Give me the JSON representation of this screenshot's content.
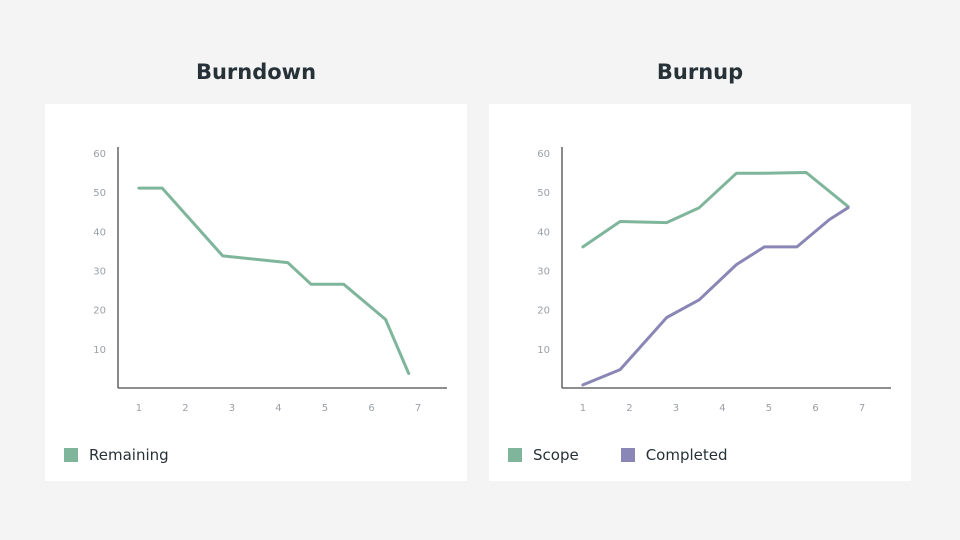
{
  "charts": [
    {
      "type": "line",
      "title": "Burndown",
      "x": [
        1,
        2,
        3,
        4,
        5,
        6,
        7
      ],
      "y_ticks": [
        10,
        20,
        30,
        40,
        50,
        60
      ],
      "xlim": [
        0.55,
        7.15
      ],
      "ylim": [
        0,
        61.5
      ],
      "grid": false,
      "legend_position": "bottom-left",
      "series": [
        {
          "name": "Remaining",
          "color": "#7fb69b",
          "points": [
            [
              1.0,
              51
            ],
            [
              1.5,
              51
            ],
            [
              2.8,
              33.7
            ],
            [
              4.2,
              32
            ],
            [
              4.7,
              26.5
            ],
            [
              5.4,
              26.5
            ],
            [
              6.3,
              17.5
            ],
            [
              6.8,
              3.7
            ]
          ]
        }
      ]
    },
    {
      "type": "line",
      "title": "Burnup",
      "x": [
        1,
        2,
        3,
        4,
        5,
        6,
        7
      ],
      "y_ticks": [
        10,
        20,
        30,
        40,
        50,
        60
      ],
      "xlim": [
        0.55,
        7.15
      ],
      "ylim": [
        0,
        61.5
      ],
      "grid": false,
      "legend_position": "bottom-left",
      "series": [
        {
          "name": "Scope",
          "color": "#7fb69b",
          "points": [
            [
              1.0,
              36
            ],
            [
              1.8,
              42.5
            ],
            [
              2.8,
              42.2
            ],
            [
              3.5,
              46
            ],
            [
              4.3,
              54.8
            ],
            [
              4.9,
              54.8
            ],
            [
              5.8,
              55
            ],
            [
              6.7,
              46.3
            ]
          ]
        },
        {
          "name": "Completed",
          "color": "#8a86b5",
          "points": [
            [
              1.0,
              0.8
            ],
            [
              1.8,
              4.7
            ],
            [
              2.8,
              18
            ],
            [
              3.5,
              22.5
            ],
            [
              4.3,
              31.5
            ],
            [
              4.9,
              36
            ],
            [
              5.6,
              36
            ],
            [
              6.3,
              43
            ],
            [
              6.7,
              46
            ]
          ]
        }
      ]
    }
  ]
}
